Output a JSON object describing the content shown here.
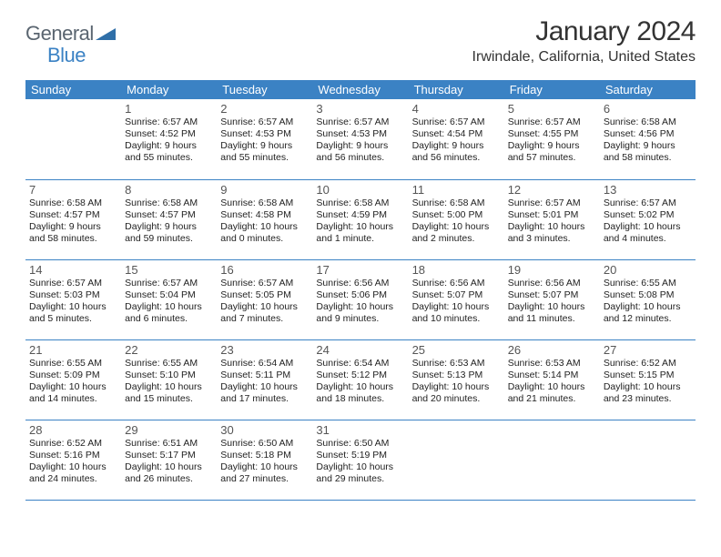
{
  "logo": {
    "text_general": "General",
    "text_blue": "Blue",
    "triangle_color": "#2f6fa8"
  },
  "title": "January 2024",
  "location": "Irwindale, California, United States",
  "colors": {
    "header_bg": "#3b82c4",
    "header_fg": "#ffffff",
    "row_border": "#3b82c4",
    "daynum": "#555555",
    "body_text": "#222222",
    "page_bg": "#ffffff",
    "logo_general": "#5a6570",
    "logo_blue": "#3b82c4"
  },
  "typography": {
    "title_fontsize": 30,
    "location_fontsize": 16,
    "weekday_fontsize": 13,
    "daynum_fontsize": 13,
    "body_fontsize": 10.5,
    "font_family": "Arial"
  },
  "weekdays": [
    "Sunday",
    "Monday",
    "Tuesday",
    "Wednesday",
    "Thursday",
    "Friday",
    "Saturday"
  ],
  "grid": [
    [
      null,
      {
        "day": "1",
        "sunrise": "Sunrise: 6:57 AM",
        "sunset": "Sunset: 4:52 PM",
        "daylight1": "Daylight: 9 hours",
        "daylight2": "and 55 minutes."
      },
      {
        "day": "2",
        "sunrise": "Sunrise: 6:57 AM",
        "sunset": "Sunset: 4:53 PM",
        "daylight1": "Daylight: 9 hours",
        "daylight2": "and 55 minutes."
      },
      {
        "day": "3",
        "sunrise": "Sunrise: 6:57 AM",
        "sunset": "Sunset: 4:53 PM",
        "daylight1": "Daylight: 9 hours",
        "daylight2": "and 56 minutes."
      },
      {
        "day": "4",
        "sunrise": "Sunrise: 6:57 AM",
        "sunset": "Sunset: 4:54 PM",
        "daylight1": "Daylight: 9 hours",
        "daylight2": "and 56 minutes."
      },
      {
        "day": "5",
        "sunrise": "Sunrise: 6:57 AM",
        "sunset": "Sunset: 4:55 PM",
        "daylight1": "Daylight: 9 hours",
        "daylight2": "and 57 minutes."
      },
      {
        "day": "6",
        "sunrise": "Sunrise: 6:58 AM",
        "sunset": "Sunset: 4:56 PM",
        "daylight1": "Daylight: 9 hours",
        "daylight2": "and 58 minutes."
      }
    ],
    [
      {
        "day": "7",
        "sunrise": "Sunrise: 6:58 AM",
        "sunset": "Sunset: 4:57 PM",
        "daylight1": "Daylight: 9 hours",
        "daylight2": "and 58 minutes."
      },
      {
        "day": "8",
        "sunrise": "Sunrise: 6:58 AM",
        "sunset": "Sunset: 4:57 PM",
        "daylight1": "Daylight: 9 hours",
        "daylight2": "and 59 minutes."
      },
      {
        "day": "9",
        "sunrise": "Sunrise: 6:58 AM",
        "sunset": "Sunset: 4:58 PM",
        "daylight1": "Daylight: 10 hours",
        "daylight2": "and 0 minutes."
      },
      {
        "day": "10",
        "sunrise": "Sunrise: 6:58 AM",
        "sunset": "Sunset: 4:59 PM",
        "daylight1": "Daylight: 10 hours",
        "daylight2": "and 1 minute."
      },
      {
        "day": "11",
        "sunrise": "Sunrise: 6:58 AM",
        "sunset": "Sunset: 5:00 PM",
        "daylight1": "Daylight: 10 hours",
        "daylight2": "and 2 minutes."
      },
      {
        "day": "12",
        "sunrise": "Sunrise: 6:57 AM",
        "sunset": "Sunset: 5:01 PM",
        "daylight1": "Daylight: 10 hours",
        "daylight2": "and 3 minutes."
      },
      {
        "day": "13",
        "sunrise": "Sunrise: 6:57 AM",
        "sunset": "Sunset: 5:02 PM",
        "daylight1": "Daylight: 10 hours",
        "daylight2": "and 4 minutes."
      }
    ],
    [
      {
        "day": "14",
        "sunrise": "Sunrise: 6:57 AM",
        "sunset": "Sunset: 5:03 PM",
        "daylight1": "Daylight: 10 hours",
        "daylight2": "and 5 minutes."
      },
      {
        "day": "15",
        "sunrise": "Sunrise: 6:57 AM",
        "sunset": "Sunset: 5:04 PM",
        "daylight1": "Daylight: 10 hours",
        "daylight2": "and 6 minutes."
      },
      {
        "day": "16",
        "sunrise": "Sunrise: 6:57 AM",
        "sunset": "Sunset: 5:05 PM",
        "daylight1": "Daylight: 10 hours",
        "daylight2": "and 7 minutes."
      },
      {
        "day": "17",
        "sunrise": "Sunrise: 6:56 AM",
        "sunset": "Sunset: 5:06 PM",
        "daylight1": "Daylight: 10 hours",
        "daylight2": "and 9 minutes."
      },
      {
        "day": "18",
        "sunrise": "Sunrise: 6:56 AM",
        "sunset": "Sunset: 5:07 PM",
        "daylight1": "Daylight: 10 hours",
        "daylight2": "and 10 minutes."
      },
      {
        "day": "19",
        "sunrise": "Sunrise: 6:56 AM",
        "sunset": "Sunset: 5:07 PM",
        "daylight1": "Daylight: 10 hours",
        "daylight2": "and 11 minutes."
      },
      {
        "day": "20",
        "sunrise": "Sunrise: 6:55 AM",
        "sunset": "Sunset: 5:08 PM",
        "daylight1": "Daylight: 10 hours",
        "daylight2": "and 12 minutes."
      }
    ],
    [
      {
        "day": "21",
        "sunrise": "Sunrise: 6:55 AM",
        "sunset": "Sunset: 5:09 PM",
        "daylight1": "Daylight: 10 hours",
        "daylight2": "and 14 minutes."
      },
      {
        "day": "22",
        "sunrise": "Sunrise: 6:55 AM",
        "sunset": "Sunset: 5:10 PM",
        "daylight1": "Daylight: 10 hours",
        "daylight2": "and 15 minutes."
      },
      {
        "day": "23",
        "sunrise": "Sunrise: 6:54 AM",
        "sunset": "Sunset: 5:11 PM",
        "daylight1": "Daylight: 10 hours",
        "daylight2": "and 17 minutes."
      },
      {
        "day": "24",
        "sunrise": "Sunrise: 6:54 AM",
        "sunset": "Sunset: 5:12 PM",
        "daylight1": "Daylight: 10 hours",
        "daylight2": "and 18 minutes."
      },
      {
        "day": "25",
        "sunrise": "Sunrise: 6:53 AM",
        "sunset": "Sunset: 5:13 PM",
        "daylight1": "Daylight: 10 hours",
        "daylight2": "and 20 minutes."
      },
      {
        "day": "26",
        "sunrise": "Sunrise: 6:53 AM",
        "sunset": "Sunset: 5:14 PM",
        "daylight1": "Daylight: 10 hours",
        "daylight2": "and 21 minutes."
      },
      {
        "day": "27",
        "sunrise": "Sunrise: 6:52 AM",
        "sunset": "Sunset: 5:15 PM",
        "daylight1": "Daylight: 10 hours",
        "daylight2": "and 23 minutes."
      }
    ],
    [
      {
        "day": "28",
        "sunrise": "Sunrise: 6:52 AM",
        "sunset": "Sunset: 5:16 PM",
        "daylight1": "Daylight: 10 hours",
        "daylight2": "and 24 minutes."
      },
      {
        "day": "29",
        "sunrise": "Sunrise: 6:51 AM",
        "sunset": "Sunset: 5:17 PM",
        "daylight1": "Daylight: 10 hours",
        "daylight2": "and 26 minutes."
      },
      {
        "day": "30",
        "sunrise": "Sunrise: 6:50 AM",
        "sunset": "Sunset: 5:18 PM",
        "daylight1": "Daylight: 10 hours",
        "daylight2": "and 27 minutes."
      },
      {
        "day": "31",
        "sunrise": "Sunrise: 6:50 AM",
        "sunset": "Sunset: 5:19 PM",
        "daylight1": "Daylight: 10 hours",
        "daylight2": "and 29 minutes."
      },
      null,
      null,
      null
    ]
  ]
}
